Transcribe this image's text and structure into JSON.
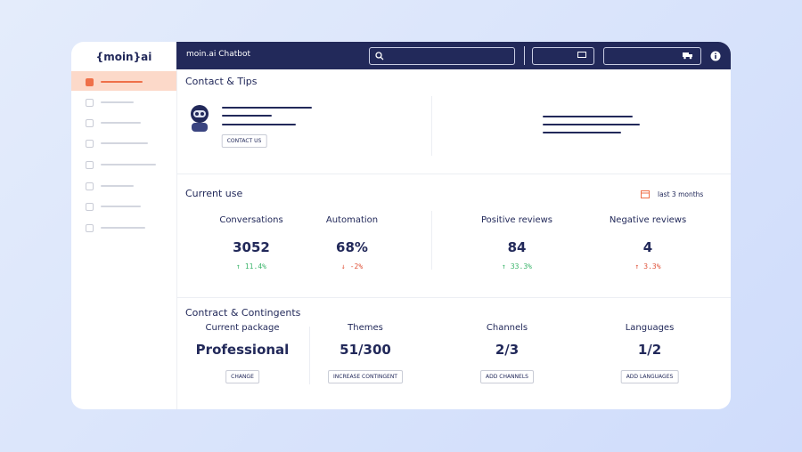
{
  "sidebar": {
    "logo": "{moin}ai"
  },
  "topbar": {
    "title": "moin.ai Chatbot"
  },
  "contact": {
    "title": "Contact & Tips",
    "button": "CONTACT US"
  },
  "usage": {
    "title": "Current use",
    "period": "last 3 months",
    "metrics": [
      {
        "label": "Conversations",
        "value": "3052",
        "change": "11.4%"
      },
      {
        "label": "Automation",
        "value": "68%",
        "change": "-2%"
      },
      {
        "label": "Positive reviews",
        "value": "84",
        "change": "33.3%"
      },
      {
        "label": "Negative reviews",
        "value": "4",
        "change": "3.3%"
      }
    ]
  },
  "contract": {
    "title": "Contract & Contingents",
    "items": [
      {
        "label": "Current package",
        "value": "Professional",
        "button": "CHANGE"
      },
      {
        "label": "Themes",
        "value": "51/300",
        "button": "INCREASE CONTINGENT"
      },
      {
        "label": "Channels",
        "value": "2/3",
        "button": "ADD CHANNELS"
      },
      {
        "label": "Languages",
        "value": "1/2",
        "button": "ADD LANGUAGES"
      }
    ]
  }
}
